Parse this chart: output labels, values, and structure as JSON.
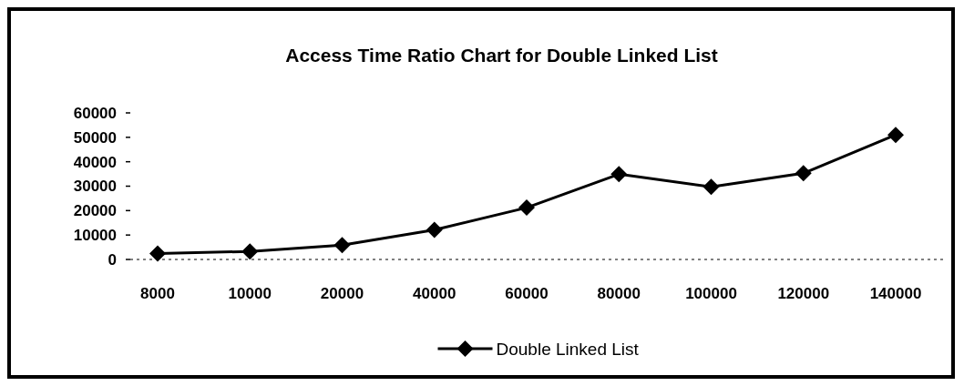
{
  "chart_data": {
    "type": "line",
    "title": "Access Time Ratio Chart for Double Linked List",
    "categories": [
      "8000",
      "10000",
      "20000",
      "40000",
      "60000",
      "80000",
      "100000",
      "120000",
      "140000"
    ],
    "series": [
      {
        "name": "Double Linked List",
        "color": "#000000",
        "values": [
          2400,
          3300,
          5900,
          12100,
          21200,
          34900,
          29700,
          35300,
          51000
        ]
      }
    ],
    "ylim": [
      0,
      60000
    ],
    "yticks": [
      0,
      10000,
      20000,
      30000,
      40000,
      50000,
      60000
    ],
    "legend": "bottom",
    "marker": "diamond",
    "grid": false
  }
}
